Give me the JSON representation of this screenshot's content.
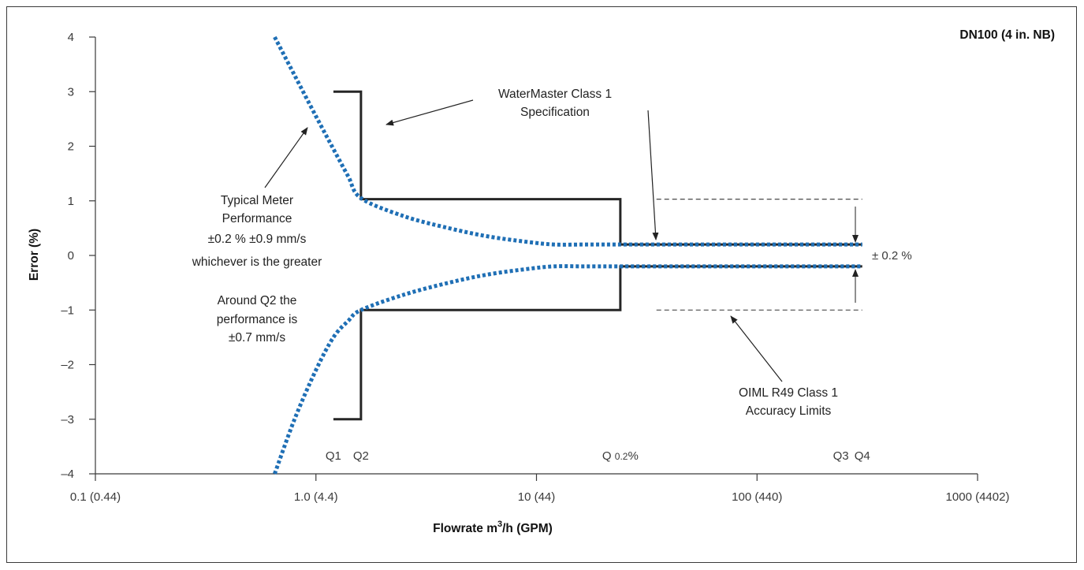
{
  "chart_data": {
    "type": "line",
    "title": "DN100 (4 in. NB)",
    "xlabel": "Flowrate m³/h (GPM)",
    "ylabel": "Error (%)",
    "x_scale": "log",
    "xlim": [
      0.1,
      1000
    ],
    "ylim": [
      -4,
      4
    ],
    "x_ticks": [
      {
        "value": 0.1,
        "label": "0.1 (0.44)"
      },
      {
        "value": 1,
        "label": "1.0 (4.4)"
      },
      {
        "value": 10,
        "label": "10 (44)"
      },
      {
        "value": 100,
        "label": "100 (440)"
      },
      {
        "value": 1000,
        "label": "1000 (4402)"
      }
    ],
    "y_ticks": [
      {
        "value": 4,
        "label": "4"
      },
      {
        "value": 3,
        "label": "3"
      },
      {
        "value": 2,
        "label": "2"
      },
      {
        "value": 1,
        "label": "1"
      },
      {
        "value": 0,
        "label": "0"
      },
      {
        "value": -1,
        "label": "–1"
      },
      {
        "value": -2,
        "label": "–2"
      },
      {
        "value": -3,
        "label": "–3"
      },
      {
        "value": -4,
        "label": "–4"
      }
    ],
    "grid": false,
    "series": [
      {
        "style": "solid-black",
        "x": [
          1.2,
          1.6,
          1.6,
          24,
          24,
          300
        ],
        "y": [
          3,
          3,
          1.03,
          1.03,
          0.2,
          0.2
        ]
      },
      {
        "style": "solid-black",
        "x": [
          1.2,
          1.6,
          1.6,
          24,
          24,
          300
        ],
        "y": [
          -3,
          -3,
          -1,
          -1,
          -0.2,
          -0.2
        ]
      },
      {
        "style": "dotted-blue",
        "x": [
          0.65,
          0.8,
          1.0,
          1.2,
          1.4,
          1.6,
          2.5,
          4,
          6,
          9,
          12,
          16,
          20,
          24,
          50,
          100,
          200,
          300
        ],
        "y": [
          4,
          3.3,
          2.55,
          1.95,
          1.45,
          1.05,
          0.72,
          0.5,
          0.35,
          0.25,
          0.2,
          0.2,
          0.2,
          0.2,
          0.2,
          0.2,
          0.2,
          0.2
        ]
      },
      {
        "style": "dotted-blue",
        "x": [
          0.65,
          0.8,
          1.0,
          1.2,
          1.4,
          1.6,
          2.5,
          4,
          6,
          9,
          12,
          16,
          20,
          24,
          50,
          100,
          200,
          300
        ],
        "y": [
          -4,
          -3,
          -2.1,
          -1.5,
          -1.2,
          -1.0,
          -0.72,
          -0.5,
          -0.35,
          -0.25,
          -0.2,
          -0.2,
          -0.2,
          -0.2,
          -0.2,
          -0.2,
          -0.2,
          -0.2
        ]
      },
      {
        "style": "dashed-black",
        "x": [
          35,
          300
        ],
        "y": [
          1.03,
          1.03
        ]
      },
      {
        "style": "dashed-black",
        "x": [
          35,
          300
        ],
        "y": [
          -1,
          -1
        ]
      }
    ],
    "q_markers": [
      {
        "label": "Q1",
        "sub": "",
        "x": 1.2
      },
      {
        "label": "Q2",
        "sub": "",
        "x": 1.6
      },
      {
        "label": "Q ",
        "sub": "0.2%",
        "x": 24
      },
      {
        "label": "Q3",
        "sub": "",
        "x": 240
      },
      {
        "label": "Q4",
        "sub": "",
        "x": 300
      }
    ],
    "annotations": {
      "spec": [
        "WaterMaster Class 1",
        "Specification"
      ],
      "typical": [
        "Typical Meter",
        "Performance",
        "±0.2 % ±0.9 mm/s",
        "whichever is the greater"
      ],
      "around_q2": [
        "Around Q2 the",
        "performance is",
        "±0.7 mm/s"
      ],
      "oiml": [
        "OIML R49 Class 1",
        "Accuracy Limits"
      ],
      "pm": "± 0.2 %"
    },
    "colors": {
      "spec_line": "#262626",
      "typical_dots": "#1f6fb5",
      "axis": "#3a3a3a"
    }
  }
}
